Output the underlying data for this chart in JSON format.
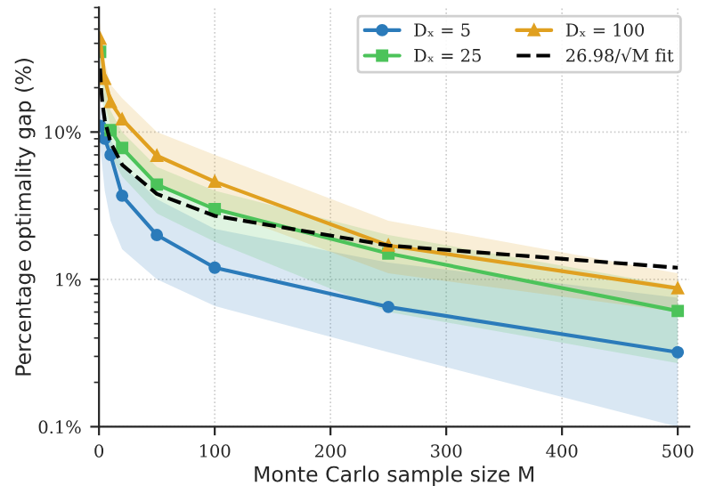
{
  "chart_data": {
    "type": "line",
    "xlabel": "Monte Carlo sample size M",
    "ylabel": "Percentage optimality gap (%)",
    "log": "y",
    "grid": true,
    "legend": "top right",
    "xlim": [
      0,
      510
    ],
    "xticks": [
      0,
      100,
      200,
      300,
      400,
      500
    ],
    "ylim": [
      0.1,
      70
    ],
    "yticks": [
      {
        "value": 0.1,
        "label": "0.1%"
      },
      {
        "value": 1,
        "label": "1%"
      },
      {
        "value": 10,
        "label": "10%"
      }
    ],
    "series": [
      {
        "name": "Dₓ = 5",
        "color": "#2b7bba",
        "marker": "circle",
        "x": [
          1,
          5,
          10,
          20,
          50,
          100,
          250,
          500
        ],
        "values": [
          11,
          9,
          7,
          3.7,
          2.0,
          1.2,
          0.65,
          0.32
        ],
        "lower": [
          8,
          4,
          2.5,
          1.6,
          1.0,
          0.66,
          0.32,
          0.1
        ],
        "upper": [
          15,
          12,
          9,
          6,
          3.5,
          2.2,
          1.3,
          0.75
        ]
      },
      {
        "name": "Dₓ = 25",
        "color": "#4cc35a",
        "marker": "square",
        "x": [
          1,
          5,
          10,
          20,
          50,
          100,
          250,
          500
        ],
        "values": [
          35,
          null,
          10.3,
          7.8,
          4.4,
          3.0,
          1.5,
          0.61
        ],
        "lower": [
          25,
          11,
          7,
          5,
          2.8,
          1.8,
          0.6,
          0.27
        ],
        "upper": [
          45,
          22,
          14,
          10,
          5.8,
          4,
          2,
          0.9
        ]
      },
      {
        "name": "Dₓ = 100",
        "color": "#e0a020",
        "marker": "triangle",
        "x": [
          1,
          5,
          10,
          20,
          50,
          100,
          250,
          500
        ],
        "values": [
          43,
          23,
          16,
          12.2,
          6.9,
          4.6,
          1.7,
          0.87
        ],
        "lower": [
          33,
          16,
          11,
          8,
          4.5,
          3,
          1.1,
          0.6
        ],
        "upper": [
          55,
          30,
          21,
          17,
          10,
          7,
          2.5,
          1.1
        ]
      },
      {
        "name": "26.98/√M fit",
        "color": "#000000",
        "marker": "none",
        "line_style": "dashed",
        "x": [
          1,
          2,
          3,
          5,
          10,
          20,
          50,
          100,
          250,
          500
        ],
        "values": [
          27,
          19.1,
          15.6,
          12.1,
          8.5,
          6.0,
          3.8,
          2.7,
          1.7,
          1.2
        ]
      }
    ]
  }
}
